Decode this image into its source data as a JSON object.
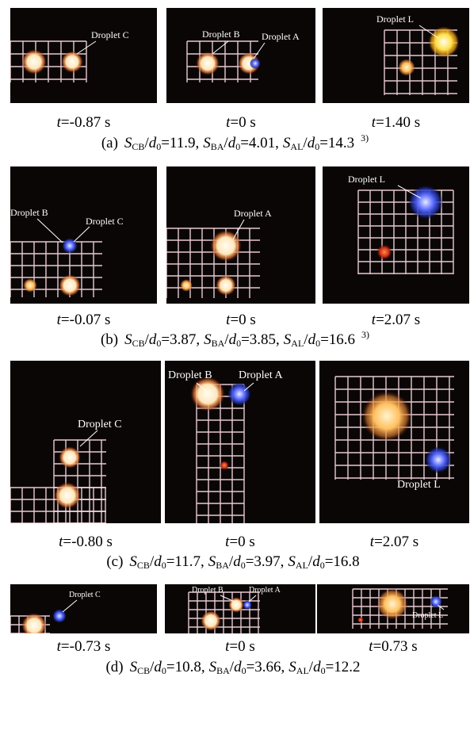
{
  "panels": [
    {
      "frames": [
        {
          "time": [
            "t",
            "=-0.87 s"
          ],
          "labels": [
            "Droplet C"
          ]
        },
        {
          "time": [
            "t",
            "=0 s"
          ],
          "labels": [
            "Droplet B",
            "Droplet A"
          ]
        },
        {
          "time": [
            "t",
            "=1.40 s"
          ],
          "labels": [
            "Droplet L"
          ]
        }
      ],
      "caption": [
        "(a)",
        "S",
        "CB",
        "/",
        "d",
        "0",
        "=11.9,",
        "S",
        "BA",
        "/",
        "d",
        "0",
        "=4.01,",
        "S",
        "AL",
        "/",
        "d",
        "0",
        "=14.3",
        "3)"
      ]
    },
    {
      "frames": [
        {
          "time": [
            "t",
            "=-0.07 s"
          ],
          "labels": [
            "Droplet B",
            "Droplet C"
          ]
        },
        {
          "time": [
            "t",
            "=0 s"
          ],
          "labels": [
            "Droplet A"
          ]
        },
        {
          "time": [
            "t",
            "=2.07 s"
          ],
          "labels": [
            "Droplet L"
          ]
        }
      ],
      "caption": [
        "(b)",
        "S",
        "CB",
        "/",
        "d",
        "0",
        "=3.87,",
        "S",
        "BA",
        "/",
        "d",
        "0",
        "=3.85,",
        "S",
        "AL",
        "/",
        "d",
        "0",
        "=16.6",
        "3)"
      ]
    },
    {
      "frames": [
        {
          "time": [
            "t",
            "=-0.80 s"
          ],
          "labels": [
            "Droplet C"
          ]
        },
        {
          "time": [
            "t",
            "=0 s"
          ],
          "labels": [
            "Droplet B",
            "Droplet A"
          ]
        },
        {
          "time": [
            "t",
            "=2.07 s"
          ],
          "labels": [
            "Droplet L"
          ]
        }
      ],
      "caption": [
        "(c)",
        "S",
        "CB",
        "/",
        "d",
        "0",
        "=11.7,",
        "S",
        "BA",
        "/",
        "d",
        "0",
        "=3.97,",
        "S",
        "AL",
        "/",
        "d",
        "0",
        "=16.8"
      ]
    },
    {
      "frames": [
        {
          "time": [
            "t",
            "=-0.73 s"
          ],
          "labels": [
            "Droplet C"
          ]
        },
        {
          "time": [
            "t",
            "=0 s"
          ],
          "labels": [
            "Droplet B",
            "Droplet A"
          ]
        },
        {
          "time": [
            "t",
            "=0.73 s"
          ],
          "labels": [
            "Droplet L"
          ]
        }
      ],
      "caption": [
        "(d)",
        "S",
        "CB",
        "/",
        "d",
        "0",
        "=10.8,",
        "S",
        "BA",
        "/",
        "d",
        "0",
        "=3.66,",
        "S",
        "AL",
        "/",
        "d",
        "0",
        "=12.2"
      ]
    }
  ]
}
